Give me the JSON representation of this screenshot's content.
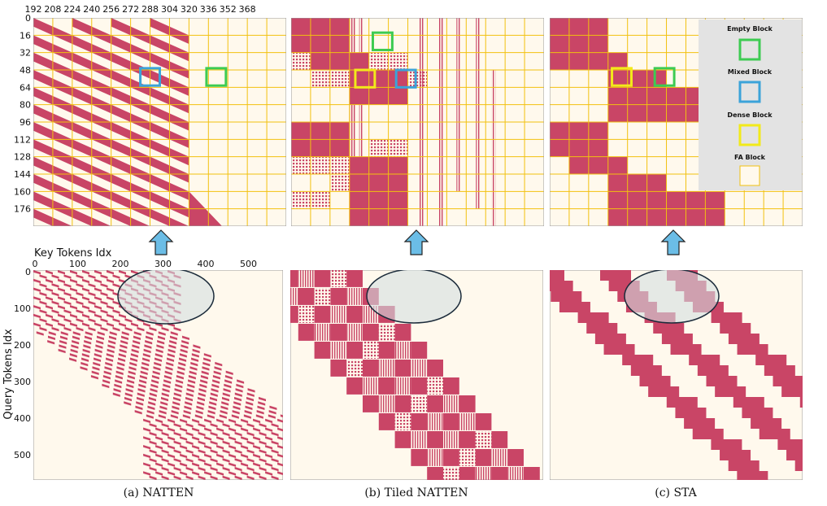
{
  "colors": {
    "attention": "#c94566",
    "background": "#fff9ed",
    "grid": "#f2c10f",
    "empty_block": "#3dcb52",
    "mixed_block": "#3ba3d9",
    "dense_block": "#f2ea1a",
    "fa_block": "#fff9ed",
    "legend_bg": "#e3e3e3",
    "arrow": "#6bbde6",
    "ellipse_fill": "#d4dee0"
  },
  "icons": {
    "arrow": "up-arrow-icon"
  },
  "top_axis": {
    "x_ticks": [
      "192",
      "208",
      "224",
      "240",
      "256",
      "272",
      "288",
      "304",
      "320",
      "336",
      "352",
      "368"
    ],
    "y_ticks": [
      "0",
      "16",
      "32",
      "48",
      "64",
      "80",
      "96",
      "112",
      "128",
      "144",
      "160",
      "176"
    ]
  },
  "bottom_axis": {
    "x_title": "Key Tokens Idx",
    "y_title": "Query Tokens Idx",
    "x_ticks": [
      "0",
      "100",
      "200",
      "300",
      "400",
      "500"
    ],
    "y_ticks": [
      "0",
      "100",
      "200",
      "300",
      "400",
      "500"
    ]
  },
  "legend": {
    "items": [
      {
        "label": "Empty Block",
        "kind": "empty"
      },
      {
        "label": "Mixed Block",
        "kind": "mixed"
      },
      {
        "label": "Dense Block",
        "kind": "dense"
      },
      {
        "label": "FA Block",
        "kind": "fa"
      }
    ]
  },
  "panels": [
    {
      "key": "natten",
      "caption": "(a) NATTEN"
    },
    {
      "key": "tiled",
      "caption": "(b) Tiled NATTEN"
    },
    {
      "key": "sta",
      "caption": "(c) STA"
    }
  ]
}
